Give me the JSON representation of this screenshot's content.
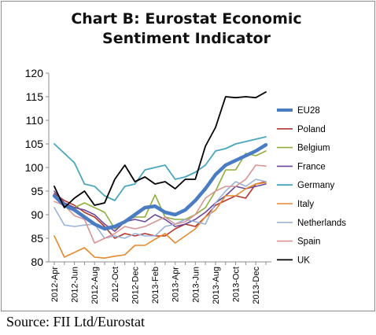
{
  "source": "Source: FII Ltd/Eurostat",
  "chart_data": {
    "type": "line",
    "title_lines": [
      "Chart B: Eurostat Economic",
      "Sentiment Indicator"
    ],
    "xlabel": "",
    "ylabel": "",
    "ylim": [
      80,
      120
    ],
    "yticks": [
      80,
      85,
      90,
      95,
      100,
      105,
      110,
      115,
      120
    ],
    "x_months": [
      "2012-Apr",
      "2012-May",
      "2012-Jun",
      "2012-Jul",
      "2012-Aug",
      "2012-Sep",
      "2012-Oct",
      "2012-Nov",
      "2012-Dec",
      "2013-Jan",
      "2013-Feb",
      "2013-Mar",
      "2013-Apr",
      "2013-May",
      "2013-Jun",
      "2013-Jul",
      "2013-Aug",
      "2013-Sep",
      "2013-Oct",
      "2013-Nov",
      "2013-Dec",
      "2014-Jan"
    ],
    "x_tick_labels": [
      "2012-Apr",
      "2012-Jun",
      "2012-Aug",
      "2012-Oct",
      "2012-Dec",
      "2013-Feb",
      "2013-Apr",
      "2013-Jun",
      "2013-Aug",
      "2013-Oct",
      "2013-Dec"
    ],
    "grid": false,
    "legend_position": "right",
    "series": [
      {
        "name": "EU28",
        "color": "#4a7cc4",
        "width": 4.5,
        "values": [
          94.0,
          92.0,
          91.0,
          89.5,
          88.0,
          87.0,
          87.5,
          88.5,
          90.0,
          91.5,
          91.8,
          90.5,
          90.0,
          91.0,
          93.0,
          95.5,
          98.5,
          100.5,
          101.5,
          102.5,
          103.5,
          104.8
        ]
      },
      {
        "name": "Poland",
        "color": "#b5362e",
        "width": 1.6,
        "values": [
          94.5,
          93.0,
          92.0,
          90.5,
          89.5,
          87.5,
          85.0,
          86.0,
          85.5,
          86.0,
          85.5,
          85.5,
          87.0,
          88.0,
          87.5,
          89.5,
          92.0,
          93.0,
          94.0,
          93.5,
          96.5,
          97.0
        ]
      },
      {
        "name": "Belgium",
        "color": "#8fae3c",
        "width": 1.6,
        "values": [
          94.0,
          92.5,
          91.5,
          92.5,
          91.5,
          90.5,
          87.0,
          88.5,
          89.5,
          89.5,
          94.2,
          89.5,
          89.0,
          89.0,
          90.0,
          91.5,
          95.0,
          99.5,
          99.5,
          103.0,
          102.5,
          103.5
        ]
      },
      {
        "name": "France",
        "color": "#6b4a96",
        "width": 1.6,
        "values": [
          95.0,
          92.5,
          91.5,
          91.0,
          90.0,
          88.0,
          86.5,
          88.5,
          89.0,
          88.5,
          90.0,
          89.0,
          87.5,
          88.0,
          89.0,
          90.5,
          92.5,
          94.0,
          96.0,
          95.5,
          96.0,
          96.5
        ]
      },
      {
        "name": "Germany",
        "color": "#4aa6bd",
        "width": 1.8,
        "values": [
          105.0,
          103.0,
          101.0,
          96.5,
          96.0,
          94.0,
          93.0,
          96.0,
          96.5,
          99.5,
          100.0,
          100.5,
          97.5,
          98.0,
          99.0,
          100.5,
          103.5,
          104.0,
          105.0,
          105.5,
          106.0,
          106.5
        ]
      },
      {
        "name": "Italy",
        "color": "#e58a2e",
        "width": 1.6,
        "values": [
          85.5,
          81.0,
          82.0,
          83.0,
          81.0,
          80.8,
          81.2,
          81.5,
          83.5,
          83.5,
          84.8,
          86.0,
          84.0,
          85.5,
          87.0,
          89.5,
          91.0,
          94.0,
          94.0,
          95.5,
          96.5,
          96.8
        ]
      },
      {
        "name": "Netherlands",
        "color": "#9bb3d9",
        "width": 1.6,
        "values": [
          91.5,
          87.8,
          87.5,
          87.8,
          88.0,
          85.0,
          85.5,
          85.0,
          86.0,
          85.5,
          85.5,
          87.5,
          88.0,
          89.0,
          88.5,
          88.0,
          92.5,
          95.0,
          97.0,
          96.0,
          97.5,
          97.0
        ]
      },
      {
        "name": "Spain",
        "color": "#d99594",
        "width": 1.6,
        "values": [
          92.8,
          92.0,
          89.8,
          89.0,
          84.0,
          85.0,
          86.0,
          87.5,
          87.0,
          87.5,
          88.5,
          89.5,
          88.0,
          88.5,
          90.0,
          93.5,
          95.0,
          96.0,
          96.0,
          97.5,
          100.5,
          100.3
        ]
      },
      {
        "name": "UK",
        "color": "#000000",
        "width": 1.8,
        "values": [
          96.0,
          91.5,
          93.5,
          95.0,
          92.0,
          92.5,
          97.5,
          100.5,
          97.0,
          98.0,
          96.5,
          97.0,
          95.5,
          97.5,
          97.5,
          104.5,
          108.5,
          115.0,
          114.8,
          115.0,
          114.8,
          116.0
        ]
      }
    ]
  }
}
